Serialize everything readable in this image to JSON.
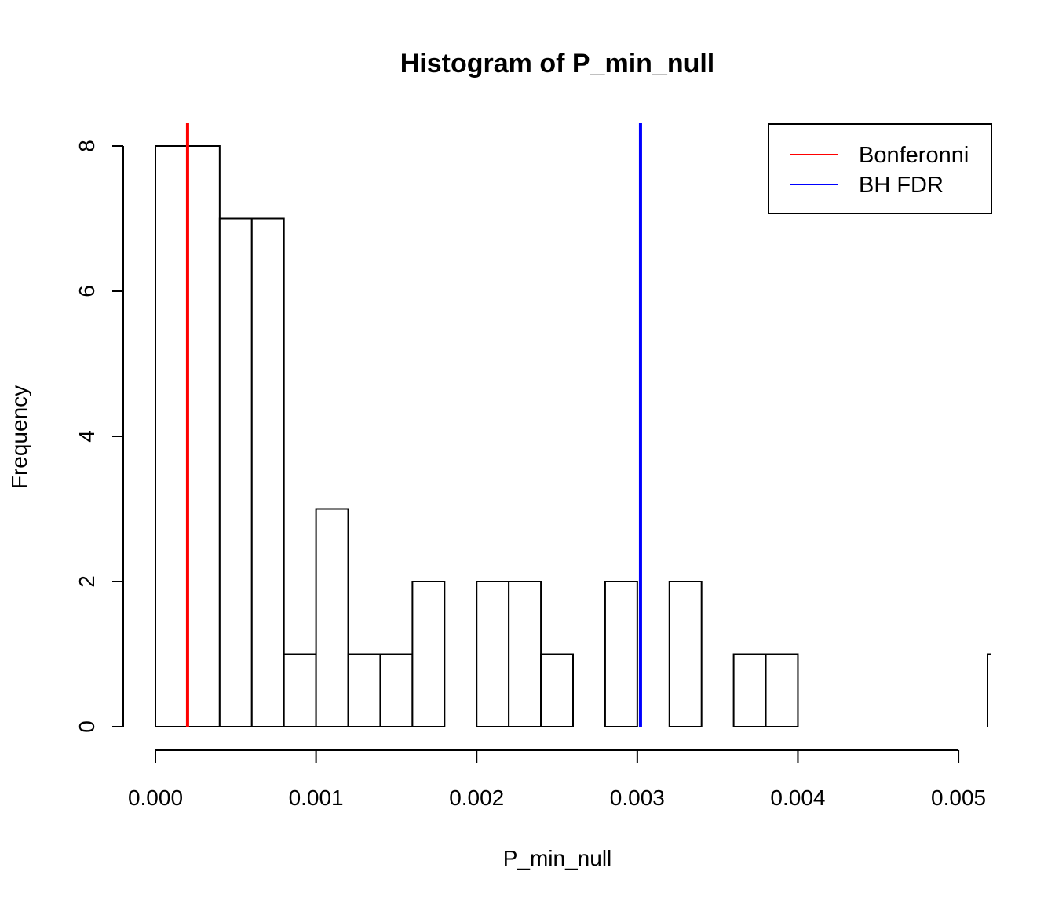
{
  "chart_data": {
    "type": "bar",
    "title": "Histogram of P_min_null",
    "xlabel": "P_min_null",
    "ylabel": "Frequency",
    "xlim": [
      0,
      0.0052
    ],
    "ylim": [
      0,
      8
    ],
    "bin_width": 0.0002,
    "bins": [
      {
        "start": 0.0,
        "end": 0.0002,
        "count": 8
      },
      {
        "start": 0.0002,
        "end": 0.0004,
        "count": 8
      },
      {
        "start": 0.0004,
        "end": 0.0006,
        "count": 7
      },
      {
        "start": 0.0006,
        "end": 0.0008,
        "count": 7
      },
      {
        "start": 0.0008,
        "end": 0.001,
        "count": 1
      },
      {
        "start": 0.001,
        "end": 0.0012,
        "count": 3
      },
      {
        "start": 0.0012,
        "end": 0.0014,
        "count": 1
      },
      {
        "start": 0.0014,
        "end": 0.0016,
        "count": 1
      },
      {
        "start": 0.0016,
        "end": 0.0018,
        "count": 2
      },
      {
        "start": 0.0018,
        "end": 0.002,
        "count": 0
      },
      {
        "start": 0.002,
        "end": 0.0022,
        "count": 2
      },
      {
        "start": 0.0022,
        "end": 0.0024,
        "count": 2
      },
      {
        "start": 0.0024,
        "end": 0.0026,
        "count": 1
      },
      {
        "start": 0.0026,
        "end": 0.0028,
        "count": 0
      },
      {
        "start": 0.0028,
        "end": 0.003,
        "count": 2
      },
      {
        "start": 0.003,
        "end": 0.0032,
        "count": 0
      },
      {
        "start": 0.0032,
        "end": 0.0034,
        "count": 2
      },
      {
        "start": 0.0034,
        "end": 0.0036,
        "count": 0
      },
      {
        "start": 0.0036,
        "end": 0.0038,
        "count": 1
      },
      {
        "start": 0.0038,
        "end": 0.004,
        "count": 1
      },
      {
        "start": 0.004,
        "end": 0.0042,
        "count": 0
      },
      {
        "start": 0.0042,
        "end": 0.0044,
        "count": 0
      },
      {
        "start": 0.0044,
        "end": 0.0046,
        "count": 0
      },
      {
        "start": 0.0046,
        "end": 0.0048,
        "count": 0
      },
      {
        "start": 0.0048,
        "end": 0.005,
        "count": 0
      },
      {
        "start": 0.005,
        "end": 0.0052,
        "count": 0
      },
      {
        "start": 0.0052,
        "end": 0.0054,
        "count": 1
      }
    ],
    "x_ticks": [
      {
        "value": 0.0,
        "label": "0.000"
      },
      {
        "value": 0.001,
        "label": "0.001"
      },
      {
        "value": 0.002,
        "label": "0.002"
      },
      {
        "value": 0.003,
        "label": "0.003"
      },
      {
        "value": 0.004,
        "label": "0.004"
      },
      {
        "value": 0.005,
        "label": "0.005"
      }
    ],
    "y_ticks": [
      {
        "value": 0,
        "label": "0"
      },
      {
        "value": 2,
        "label": "2"
      },
      {
        "value": 4,
        "label": "4"
      },
      {
        "value": 6,
        "label": "6"
      },
      {
        "value": 8,
        "label": "8"
      }
    ],
    "vlines": [
      {
        "name": "Bonferonni",
        "x": 0.0002,
        "color": "#ff0000"
      },
      {
        "name": "BH FDR",
        "x": 0.00302,
        "color": "#0000ff"
      }
    ],
    "legend": {
      "position": "top-right",
      "entries": [
        {
          "label": "Bonferonni",
          "color": "#ff0000"
        },
        {
          "label": "BH FDR",
          "color": "#0000ff"
        }
      ]
    },
    "grid": false
  }
}
